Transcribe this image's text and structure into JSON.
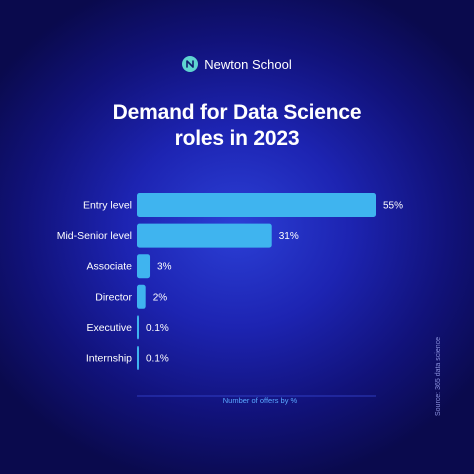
{
  "brand": {
    "name": "Newton School",
    "logo_icon": "newton-school-logo-icon"
  },
  "header": {
    "title_line1": "Demand for Data Science",
    "title_line2": "roles in 2023"
  },
  "source_note": "Source: 365 data science",
  "colors": {
    "bar": "#3fb4ef",
    "text": "#ffffff",
    "axis_label": "#5aa8ff"
  },
  "chart_data": {
    "type": "bar",
    "orientation": "horizontal",
    "title": "Demand for Data Science roles in 2023",
    "xlabel": "Number of offers by %",
    "ylabel": "",
    "xlim": [
      0,
      55
    ],
    "grid": false,
    "categories": [
      "Entry level",
      "Mid-Senior level",
      "Associate",
      "Director",
      "Executive",
      "Internship"
    ],
    "values": [
      55,
      31,
      3,
      2,
      0.1,
      0.1
    ],
    "value_labels": [
      "55%",
      "31%",
      "3%",
      "2%",
      "0.1%",
      "0.1%"
    ]
  }
}
